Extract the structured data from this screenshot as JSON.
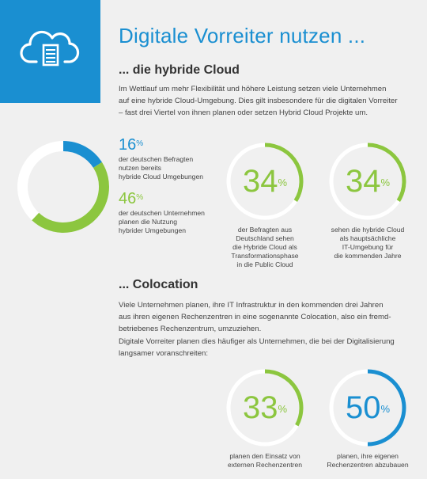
{
  "header": {
    "icon": "cloud-server-icon",
    "title": "Digitale Vorreiter nutzen ..."
  },
  "colors": {
    "blue": "#1a8fd1",
    "green": "#8cc63f",
    "ring_track": "#ffffff",
    "background": "#f0f0f0"
  },
  "hybrid": {
    "title": "... die hybride Cloud",
    "intro": [
      "Im Wettlauf um mehr Flexibilität und höhere Leistung setzen viele Unternehmen",
      "auf eine hybride Cloud-Umgebung. Dies gilt insbesondere für die digitalen Vorreiter",
      "– fast drei Viertel von ihnen planen oder setzen Hybrid Cloud Projekte um."
    ],
    "donut": {
      "segments": [
        {
          "value": 16,
          "color": "#1a8fd1"
        },
        {
          "value": 46,
          "color": "#8cc63f"
        }
      ]
    },
    "stat1": {
      "value": "16",
      "unit": "%",
      "label": [
        "der deutschen Befragten",
        "nutzen bereits",
        "hybride Cloud Umgebungen"
      ]
    },
    "stat2": {
      "value": "46",
      "unit": "%",
      "label": [
        "der deutschen Unternehmen",
        "planen die Nutzung",
        "hybrider Umgebungen"
      ]
    },
    "ring1": {
      "value": "34",
      "unit": "%",
      "fill": 0.34,
      "caption": [
        "der Befragten aus",
        "Deutschland sehen",
        "die Hybride Cloud als",
        "Transformationsphase",
        "in die Public Cloud"
      ]
    },
    "ring2": {
      "value": "34",
      "unit": "%",
      "fill": 0.34,
      "caption": [
        "sehen die hybride Cloud",
        "als hauptsächliche",
        "IT-Umgebung für",
        "die kommenden Jahre"
      ]
    }
  },
  "colocation": {
    "title": "... Colocation",
    "para1": [
      "Viele Unternehmen planen, ihre IT Infrastruktur in den kommenden drei Jahren",
      "aus ihren eigenen Rechenzentren in eine sogenannte Colocation, also ein fremd-",
      "betriebenes Rechenzentrum, umzuziehen."
    ],
    "para2": [
      "Digitale Vorreiter planen dies häufiger als Unternehmen, die bei der Digitalisierung",
      "langsamer voranschreiten:"
    ],
    "ring1": {
      "value": "33",
      "unit": "%",
      "fill": 0.33,
      "caption": [
        "planen den Einsatz von",
        "externen Rechenzentren"
      ]
    },
    "ring2": {
      "value": "50",
      "unit": "%",
      "fill": 0.5,
      "caption": [
        "planen, ihre eigenen",
        "Rechenzentren abzubauen"
      ]
    }
  }
}
